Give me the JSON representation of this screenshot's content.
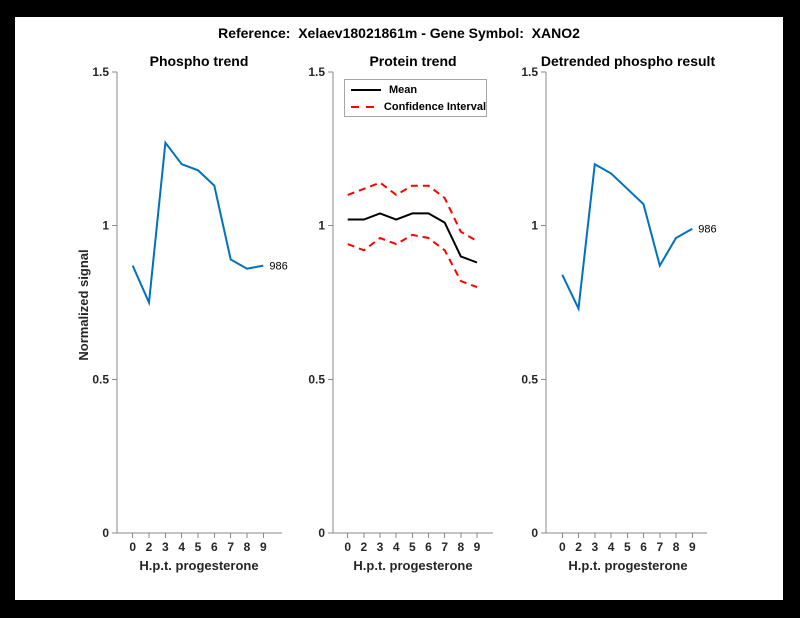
{
  "figure": {
    "title": "Reference:  Xelaev18021861m - Gene Symbol:  XANO2",
    "background_color": "#000000",
    "canvas_color": "#ffffff",
    "axis_color": "#8a8a8a",
    "tick_text_color": "#262626",
    "accent_blue": "#0072BD",
    "ci_red": "#ff0000",
    "mean_black": "#000000"
  },
  "chart_data": [
    {
      "type": "line",
      "title": "Phospho trend",
      "xlabel": "H.p.t. progesterone",
      "ylabel": "Normalized signal",
      "x_tick_labels": [
        "0",
        "2",
        "3",
        "4",
        "5",
        "6",
        "7",
        "8",
        "9"
      ],
      "y_ticks": [
        0,
        0.5,
        1,
        1.5
      ],
      "y_tick_labels": [
        "0",
        "0.5",
        "1",
        "1.5"
      ],
      "ylim": [
        0,
        1.5
      ],
      "grid": false,
      "end_label": "986",
      "series": [
        {
          "name": "986",
          "color": "#0072BD",
          "style": "solid",
          "width": 2,
          "values": [
            0.87,
            0.75,
            1.27,
            1.2,
            1.18,
            1.13,
            0.89,
            0.86,
            0.87
          ]
        }
      ]
    },
    {
      "type": "line",
      "title": "Protein trend",
      "xlabel": "H.p.t. progesterone",
      "ylabel": "",
      "x_tick_labels": [
        "0",
        "2",
        "3",
        "4",
        "5",
        "6",
        "7",
        "8",
        "9"
      ],
      "y_ticks": [
        0,
        0.5,
        1,
        1.5
      ],
      "y_tick_labels": [
        "0",
        "0.5",
        "1",
        "1.5"
      ],
      "ylim": [
        0,
        1.5
      ],
      "grid": false,
      "legend": {
        "position": "northwest",
        "entries": [
          {
            "label": "Mean",
            "color": "#000000",
            "style": "solid"
          },
          {
            "label": "Confidence Interval",
            "color": "#ff0000",
            "style": "dashed"
          }
        ]
      },
      "series": [
        {
          "name": "Mean",
          "color": "#000000",
          "style": "solid",
          "width": 2,
          "values": [
            1.02,
            1.02,
            1.04,
            1.02,
            1.04,
            1.04,
            1.01,
            0.9,
            0.88
          ]
        },
        {
          "name": "Confidence Interval upper",
          "color": "#ff0000",
          "style": "dashed",
          "width": 2,
          "values": [
            1.1,
            1.12,
            1.14,
            1.1,
            1.13,
            1.13,
            1.09,
            0.98,
            0.95
          ]
        },
        {
          "name": "Confidence Interval lower",
          "color": "#ff0000",
          "style": "dashed",
          "width": 2,
          "values": [
            0.94,
            0.92,
            0.96,
            0.94,
            0.97,
            0.96,
            0.92,
            0.82,
            0.8
          ]
        }
      ]
    },
    {
      "type": "line",
      "title": "Detrended phospho result",
      "xlabel": "H.p.t. progesterone",
      "ylabel": "",
      "x_tick_labels": [
        "0",
        "2",
        "3",
        "4",
        "5",
        "6",
        "7",
        "8",
        "9"
      ],
      "y_ticks": [
        0,
        0.5,
        1,
        1.5
      ],
      "y_tick_labels": [
        "0",
        "0.5",
        "1",
        "1.5"
      ],
      "ylim": [
        0,
        1.5
      ],
      "grid": false,
      "end_label": "986",
      "series": [
        {
          "name": "986",
          "color": "#0072BD",
          "style": "solid",
          "width": 2,
          "values": [
            0.84,
            0.73,
            1.2,
            1.17,
            1.12,
            1.07,
            0.87,
            0.96,
            0.99
          ]
        }
      ]
    }
  ]
}
